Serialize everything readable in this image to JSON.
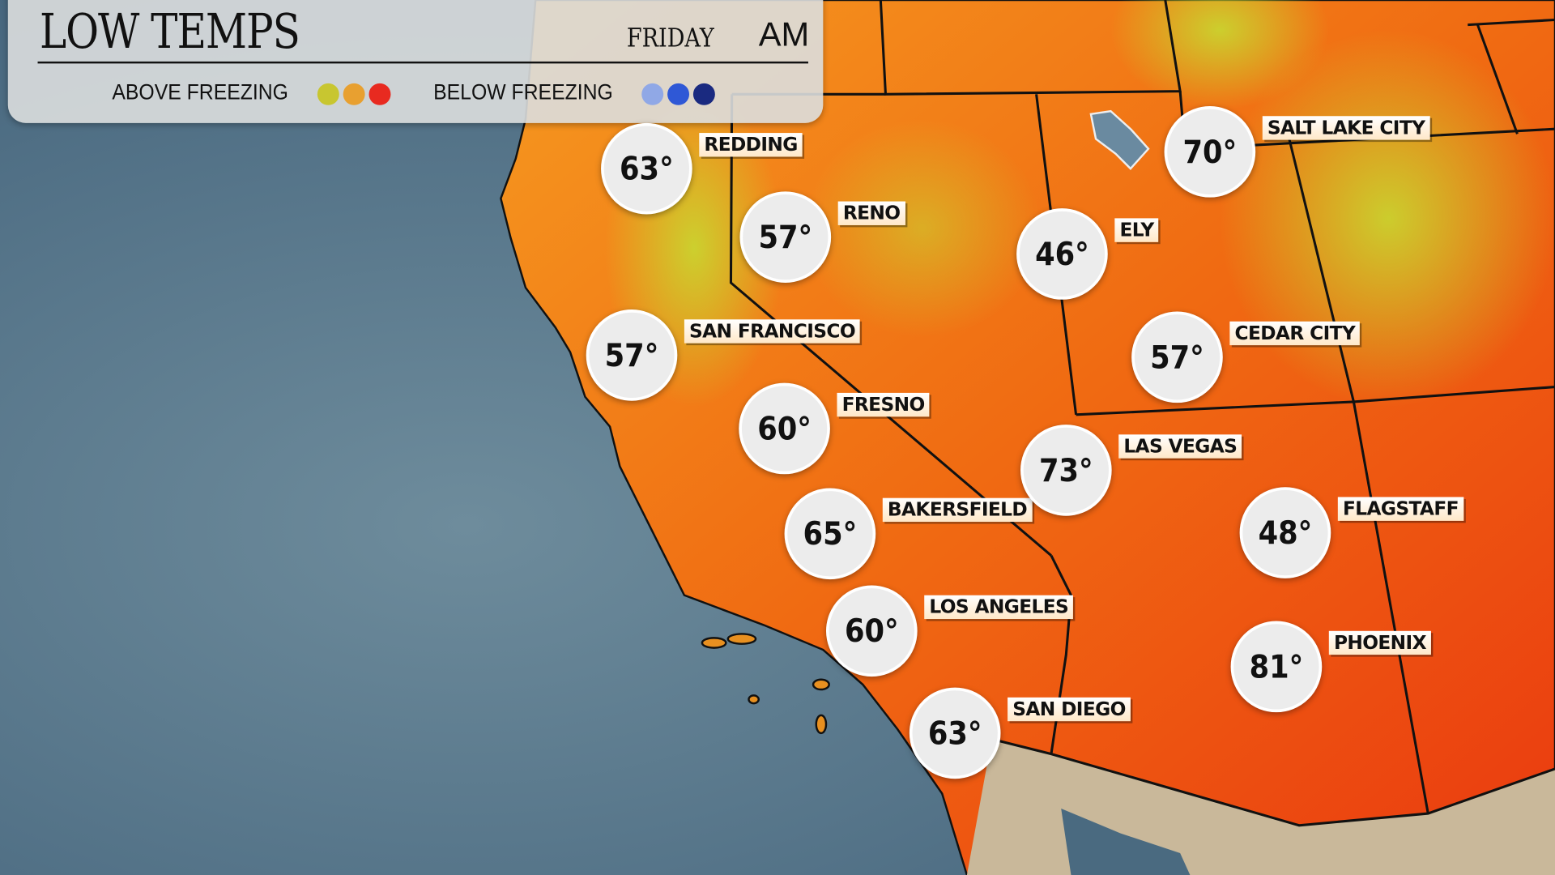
{
  "header": {
    "title": "LOW TEMPS",
    "day": "FRIDAY",
    "period": "AM"
  },
  "legend": {
    "above_label": "ABOVE FREEZING",
    "above_colors": [
      "#c8c630",
      "#e8a030",
      "#e82a20"
    ],
    "below_label": "BELOW FREEZING",
    "below_colors": [
      "#90a8e6",
      "#2f58d6",
      "#1a2a80"
    ]
  },
  "colors": {
    "ocean": "#5f7f93",
    "land_warm": "#f26a10",
    "land_cool": "#d9d030",
    "mexico": "#c9b89a"
  },
  "cities": [
    {
      "name": "REDDING",
      "temp": "63°"
    },
    {
      "name": "RENO",
      "temp": "57°"
    },
    {
      "name": "SAN FRANCISCO",
      "temp": "57°"
    },
    {
      "name": "FRESNO",
      "temp": "60°"
    },
    {
      "name": "BAKERSFIELD",
      "temp": "65°"
    },
    {
      "name": "LOS ANGELES",
      "temp": "60°"
    },
    {
      "name": "SAN DIEGO",
      "temp": "63°"
    },
    {
      "name": "ELY",
      "temp": "46°"
    },
    {
      "name": "SALT LAKE CITY",
      "temp": "70°"
    },
    {
      "name": "CEDAR CITY",
      "temp": "57°"
    },
    {
      "name": "LAS VEGAS",
      "temp": "73°"
    },
    {
      "name": "FLAGSTAFF",
      "temp": "48°"
    },
    {
      "name": "PHOENIX",
      "temp": "81°"
    }
  ]
}
